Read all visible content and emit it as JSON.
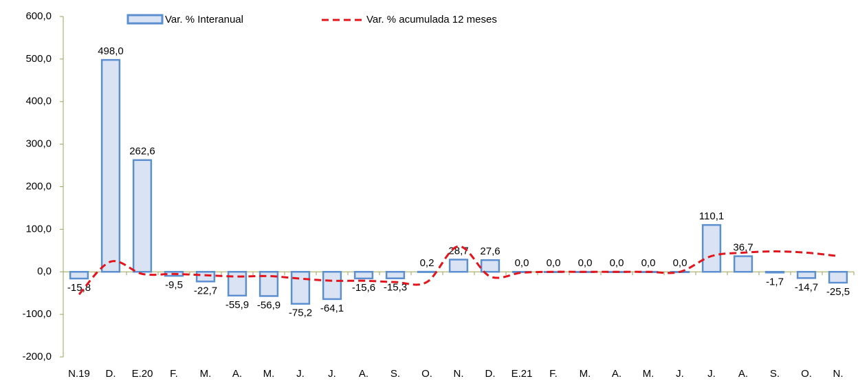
{
  "chart_data": {
    "type": "bar_line",
    "categories": [
      "N.19",
      "D.",
      "E.20",
      "F.",
      "M.",
      "A.",
      "M.",
      "J.",
      "J.",
      "A.",
      "S.",
      "O.",
      "N.",
      "D.",
      "E.21",
      "F.",
      "M.",
      "A.",
      "M.",
      "J.",
      "J.",
      "A.",
      "S.",
      "O.",
      "N."
    ],
    "series": [
      {
        "name": "Var. % Interanual",
        "type": "bar",
        "color": "#dae3f3",
        "edge_color": "#5b8fd0",
        "values": [
          -15.8,
          498.0,
          262.6,
          -9.5,
          -22.7,
          -55.9,
          -56.9,
          -75.2,
          -64.1,
          -15.6,
          -15.3,
          0.2,
          28.7,
          27.6,
          0.0,
          0.0,
          0.0,
          0.0,
          0.0,
          0.0,
          110.1,
          36.7,
          -1.7,
          -14.7,
          -25.5
        ],
        "value_labels": [
          "-15,8",
          "498,0",
          "262,6",
          "-9,5",
          "-22,7",
          "-55,9",
          "-56,9",
          "-75,2",
          "-64,1",
          "-15,6",
          "-15,3",
          "0,2",
          "28,7",
          "27,6",
          "0,0",
          "0,0",
          "0,0",
          "0,0",
          "0,0",
          "0,0",
          "110,1",
          "36,7",
          "-1,7",
          "-14,7",
          "-25,5"
        ]
      },
      {
        "name": "Var. % acumulada 12 meses",
        "type": "line",
        "color": "#e3141b",
        "values": [
          -53,
          24,
          -5,
          -5,
          -8,
          -11,
          -10,
          -16,
          -21,
          -21,
          -24,
          -24,
          60,
          -11,
          -2,
          0,
          0,
          0,
          0,
          0,
          37,
          45,
          48,
          45,
          37
        ]
      }
    ],
    "ylim": [
      -200,
      600
    ],
    "yticks": [
      {
        "value": -200,
        "label": "-200,0"
      },
      {
        "value": -100,
        "label": "-100,0"
      },
      {
        "value": 0,
        "label": "0,0"
      },
      {
        "value": 100,
        "label": "100,0"
      },
      {
        "value": 200,
        "label": "200,0"
      },
      {
        "value": 300,
        "label": "300,0"
      },
      {
        "value": 400,
        "label": "400,0"
      },
      {
        "value": 500,
        "label": "500,0"
      },
      {
        "value": 600,
        "label": "600,0"
      }
    ]
  }
}
